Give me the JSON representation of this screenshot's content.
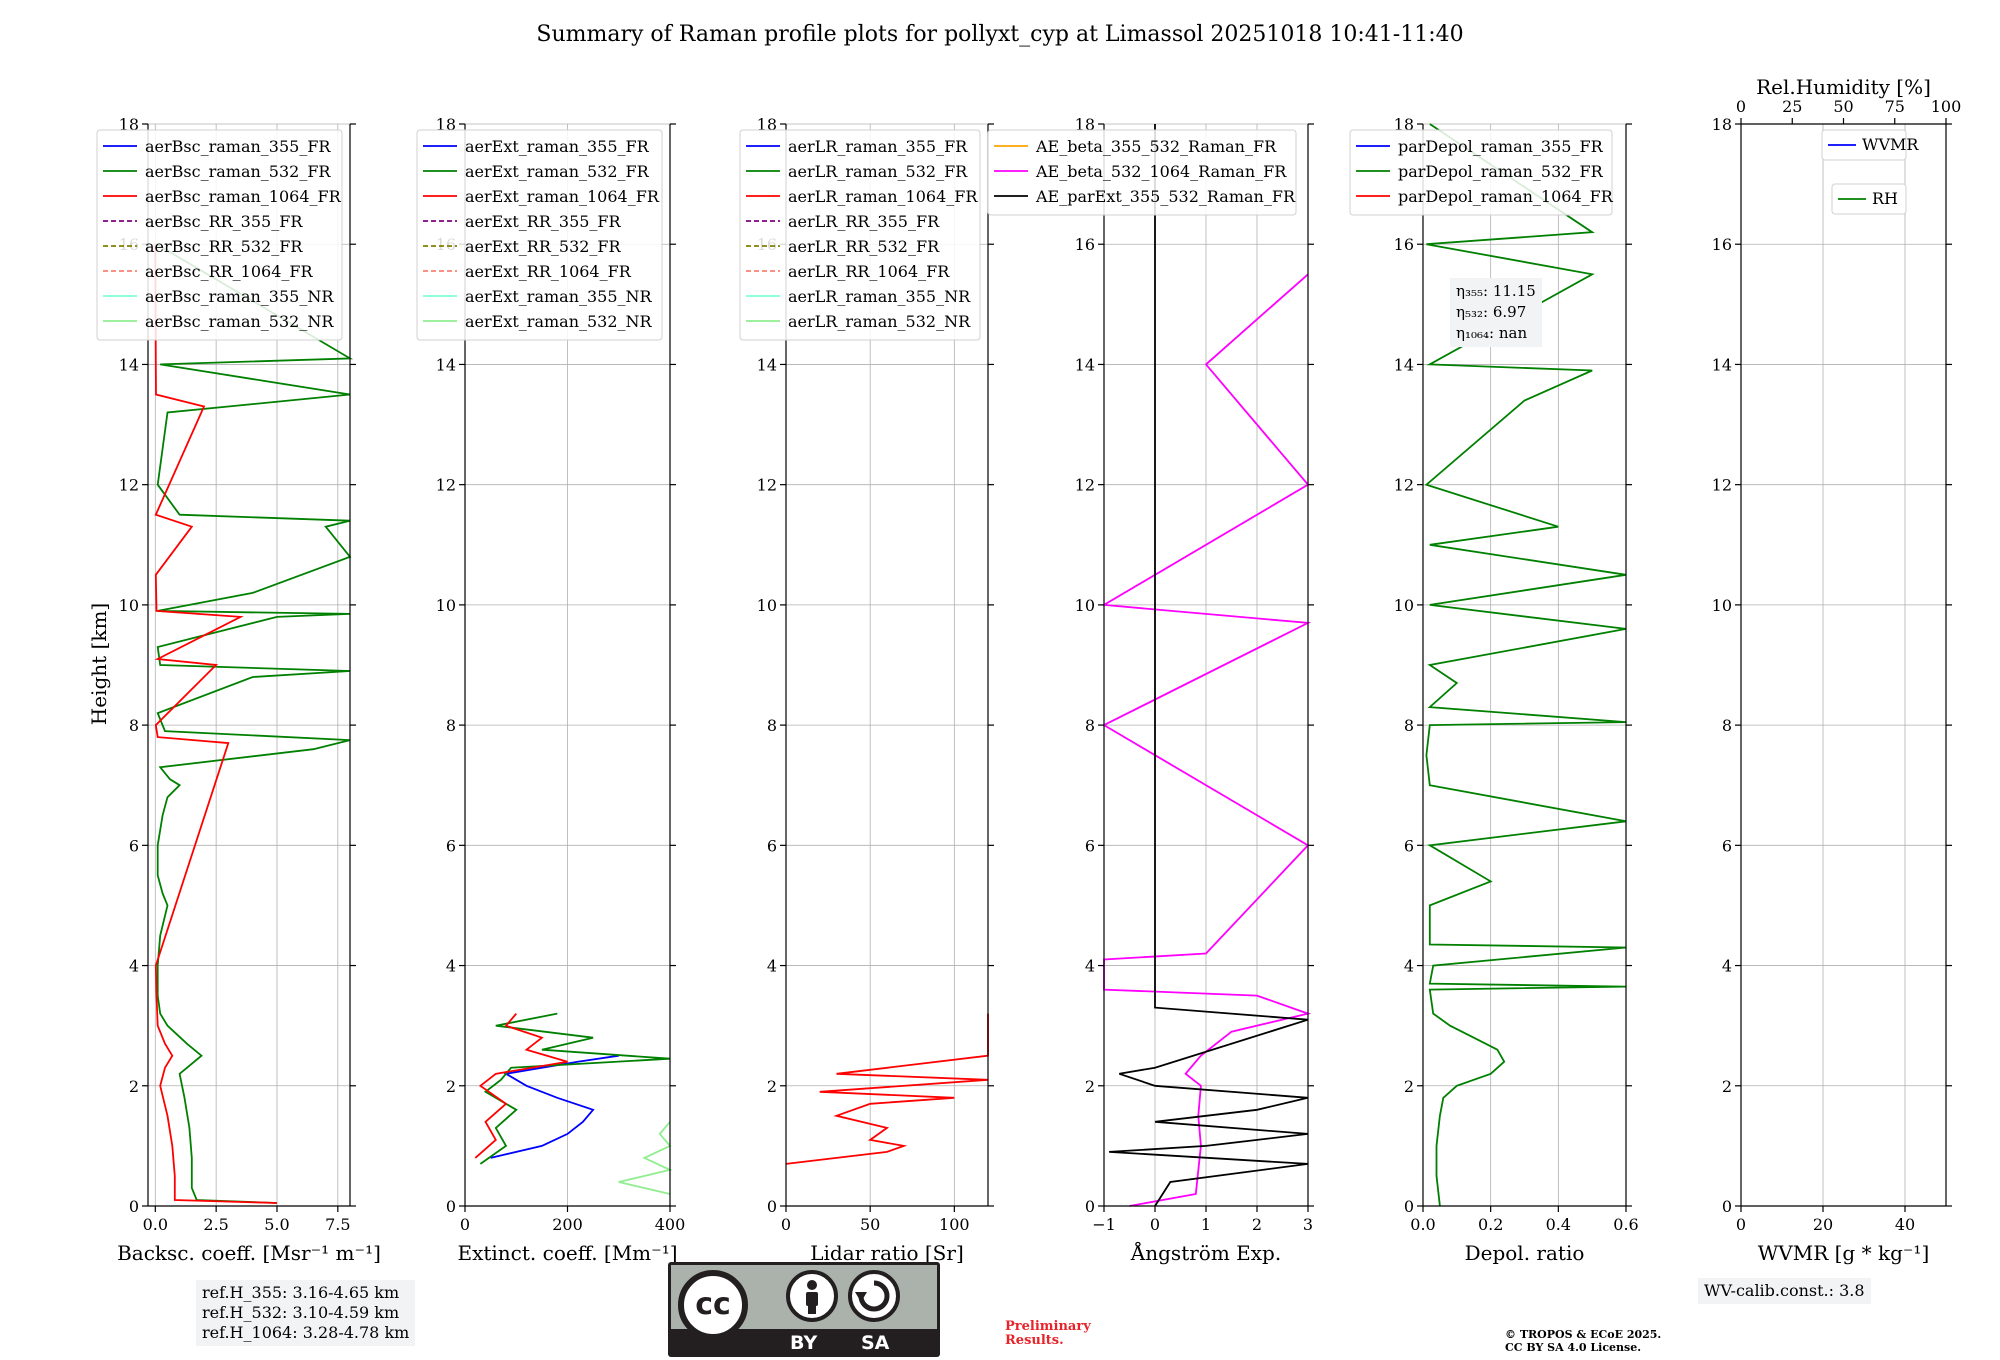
{
  "title": "Summary of Raman profile plots for pollyxt_cyp at Limassol 20251018 10:41-11:40",
  "ylabel": "Height [km]",
  "y_ticks": [
    "0",
    "2",
    "4",
    "6",
    "8",
    "10",
    "12",
    "14",
    "16",
    "18"
  ],
  "colors": {
    "c355": "#0000ff",
    "c532": "#008000",
    "c1064": "#ff0000",
    "rr355": "#800080",
    "rr532": "#808000",
    "rr1064": "#fa8072",
    "nr355": "#7fffd4",
    "nr532": "#90ee90",
    "ae1": "#ffa500",
    "ae2": "#ff00ff",
    "ae3": "#000000"
  },
  "chart_data": [
    {
      "type": "line",
      "name": "backscatter",
      "xlabel": "Backsc. coeff. [Msr⁻¹ m⁻¹]",
      "xlim": [
        -0.3,
        8
      ],
      "ylim": [
        0,
        18
      ],
      "x_ticks": [
        "0.0",
        "2.5",
        "5.0",
        "7.5"
      ],
      "legend": [
        "aerBsc_raman_355_FR",
        "aerBsc_raman_532_FR",
        "aerBsc_raman_1064_FR",
        "aerBsc_RR_355_FR",
        "aerBsc_RR_532_FR",
        "aerBsc_RR_1064_FR",
        "aerBsc_raman_355_NR",
        "aerBsc_raman_532_NR"
      ],
      "series": [
        {
          "name": "aerBsc_raman_532_FR",
          "y": [
            0.05,
            0.1,
            0.3,
            0.8,
            1.3,
            1.8,
            2.2,
            2.5,
            2.7,
            2.85,
            3.0,
            3.2,
            3.5,
            4.0,
            4.5,
            5.0,
            5.2,
            5.5,
            6.0,
            6.5,
            6.8,
            7.0,
            7.1,
            7.3,
            7.6,
            7.75,
            7.9,
            8.2,
            8.8,
            8.9,
            9.0,
            9.3,
            9.8,
            9.85,
            9.9,
            10.2,
            10.8,
            11.3,
            11.4,
            11.5,
            12.0,
            13.2,
            13.5,
            14.0,
            14.1,
            16.0
          ],
          "x": [
            5.0,
            1.7,
            1.5,
            1.5,
            1.4,
            1.2,
            1.0,
            1.9,
            1.3,
            0.9,
            0.5,
            0.2,
            0.1,
            0.1,
            0.2,
            0.5,
            0.3,
            0.1,
            0.1,
            0.3,
            0.5,
            1.0,
            0.6,
            0.2,
            6.5,
            8.0,
            0.4,
            0.1,
            4.0,
            8.0,
            0.2,
            0.1,
            5.0,
            8.0,
            0.1,
            4.0,
            8.0,
            7.0,
            8.0,
            1.0,
            0.1,
            0.5,
            8.0,
            0.2,
            8.0,
            0.05
          ]
        },
        {
          "name": "aerBsc_raman_1064_FR",
          "y": [
            0.05,
            0.1,
            0.5,
            1.0,
            1.5,
            2.0,
            2.3,
            2.5,
            2.7,
            3.0,
            3.5,
            4.0,
            7.7,
            7.8,
            8.0,
            9.0,
            9.1,
            9.8,
            9.9,
            10.5,
            11.3,
            11.5,
            13.3,
            13.5,
            14.0,
            16.0
          ],
          "x": [
            5.0,
            0.8,
            0.8,
            0.7,
            0.5,
            0.2,
            0.4,
            0.7,
            0.4,
            0.1,
            0.05,
            0.02,
            3.0,
            0.1,
            0.02,
            2.5,
            0.1,
            3.5,
            0.05,
            0.02,
            1.5,
            0.02,
            2.0,
            0.03,
            0.02,
            0.0
          ]
        }
      ]
    },
    {
      "type": "line",
      "name": "extinction",
      "xlabel": "Extinct. coeff. [Mm⁻¹]",
      "xlim": [
        0,
        400
      ],
      "ylim": [
        0,
        18
      ],
      "x_ticks": [
        "0",
        "200",
        "400"
      ],
      "legend": [
        "aerExt_raman_355_FR",
        "aerExt_raman_532_FR",
        "aerExt_raman_1064_FR",
        "aerExt_RR_355_FR",
        "aerExt_RR_532_FR",
        "aerExt_RR_1064_FR",
        "aerExt_raman_355_NR",
        "aerExt_raman_532_NR"
      ],
      "series": [
        {
          "name": "aerExt_raman_355_FR",
          "y": [
            0.8,
            1.0,
            1.2,
            1.4,
            1.6,
            1.8,
            2.0,
            2.2,
            2.4,
            2.5
          ],
          "x": [
            50,
            150,
            200,
            230,
            250,
            180,
            120,
            80,
            220,
            300
          ]
        },
        {
          "name": "aerExt_raman_532_FR",
          "y": [
            0.7,
            1.0,
            1.3,
            1.6,
            1.9,
            2.1,
            2.3,
            2.45,
            2.6,
            2.8,
            3.0,
            3.2
          ],
          "x": [
            30,
            80,
            60,
            100,
            40,
            70,
            90,
            400,
            150,
            250,
            60,
            180
          ]
        },
        {
          "name": "aerExt_raman_1064_FR",
          "y": [
            0.8,
            1.1,
            1.4,
            1.7,
            2.0,
            2.2,
            2.4,
            2.6,
            2.8,
            3.0,
            3.2
          ],
          "x": [
            20,
            60,
            40,
            80,
            30,
            60,
            200,
            120,
            150,
            80,
            100
          ]
        },
        {
          "name": "aerExt_raman_532_NR",
          "y": [
            0.2,
            0.4,
            0.6,
            0.8,
            1.0,
            1.2,
            1.4
          ],
          "x": [
            400,
            300,
            400,
            350,
            400,
            380,
            400
          ]
        }
      ]
    },
    {
      "type": "line",
      "name": "lidar_ratio",
      "xlabel": "Lidar ratio [Sr]",
      "xlim": [
        0,
        120
      ],
      "ylim": [
        0,
        18
      ],
      "x_ticks": [
        "0",
        "50",
        "100"
      ],
      "legend": [
        "aerLR_raman_355_FR",
        "aerLR_raman_532_FR",
        "aerLR_raman_1064_FR",
        "aerLR_RR_355_FR",
        "aerLR_RR_532_FR",
        "aerLR_RR_1064_FR",
        "aerLR_raman_355_NR",
        "aerLR_raman_532_NR"
      ],
      "series": [
        {
          "name": "aerLR_raman_1064_FR",
          "y": [
            0.7,
            0.9,
            1.0,
            1.1,
            1.3,
            1.5,
            1.7,
            1.8,
            1.9,
            2.1,
            2.2,
            2.5,
            2.8,
            3.0,
            3.2
          ],
          "x": [
            0,
            60,
            70,
            50,
            60,
            30,
            50,
            100,
            20,
            120,
            30,
            120,
            120,
            120,
            120
          ]
        }
      ]
    },
    {
      "type": "line",
      "name": "angstrom",
      "xlabel": "Ångström Exp.",
      "xlim": [
        -1,
        3
      ],
      "ylim": [
        0,
        18
      ],
      "x_ticks": [
        "−1",
        "0",
        "1",
        "2",
        "3"
      ],
      "legend": [
        "AE_beta_355_532_Raman_FR",
        "AE_beta_532_1064_Raman_FR",
        "AE_parExt_355_532_Raman_FR"
      ],
      "series": [
        {
          "name": "AE_beta_532_1064_Raman_FR",
          "y": [
            0.0,
            0.2,
            1.0,
            1.5,
            2.0,
            2.2,
            2.5,
            2.9,
            3.2,
            3.5,
            3.6,
            4.1,
            4.2,
            6.0,
            8.0,
            9.7,
            10.0,
            12.0,
            14.0,
            15.5
          ],
          "x": [
            -0.5,
            0.8,
            0.9,
            0.85,
            0.9,
            0.6,
            0.9,
            1.5,
            3.0,
            2.0,
            -1.0,
            -1.0,
            1.0,
            3.0,
            -1.0,
            3.0,
            -1.0,
            3.0,
            1.0,
            3.0
          ]
        },
        {
          "name": "AE_parExt_355_532_Raman_FR",
          "y": [
            0.0,
            0.4,
            0.7,
            0.9,
            1.0,
            1.2,
            1.4,
            1.6,
            1.8,
            2.0,
            2.2,
            2.3,
            3.1,
            3.3,
            18.0
          ],
          "x": [
            0.0,
            0.3,
            3.0,
            -0.9,
            1.0,
            3.0,
            0.0,
            2.0,
            3.0,
            0.0,
            -0.7,
            0.0,
            3.0,
            0.0,
            0.0
          ]
        }
      ]
    },
    {
      "type": "line",
      "name": "depol",
      "xlabel": "Depol. ratio",
      "xlim": [
        0,
        0.6
      ],
      "ylim": [
        0,
        18
      ],
      "x_ticks": [
        "0.0",
        "0.2",
        "0.4",
        "0.6"
      ],
      "legend": [
        "parDepol_raman_355_FR",
        "parDepol_raman_532_FR",
        "parDepol_raman_1064_FR"
      ],
      "series": [
        {
          "name": "parDepol_raman_532_FR",
          "y": [
            0.0,
            0.5,
            1.0,
            1.5,
            1.8,
            2.0,
            2.2,
            2.4,
            2.6,
            2.8,
            3.0,
            3.2,
            3.6,
            3.65,
            3.7,
            4.0,
            4.3,
            4.35,
            5.0,
            5.4,
            6.0,
            6.4,
            7.0,
            7.5,
            8.0,
            8.05,
            8.3,
            8.7,
            9.0,
            9.6,
            10.0,
            10.5,
            11.0,
            11.3,
            12.0,
            13.4,
            13.9,
            14.0,
            15.5,
            16.0,
            16.2,
            18.0
          ],
          "x": [
            0.05,
            0.04,
            0.04,
            0.05,
            0.06,
            0.1,
            0.2,
            0.24,
            0.22,
            0.15,
            0.08,
            0.03,
            0.02,
            0.6,
            0.02,
            0.03,
            0.6,
            0.02,
            0.02,
            0.2,
            0.02,
            0.6,
            0.02,
            0.01,
            0.02,
            0.6,
            0.02,
            0.1,
            0.02,
            0.6,
            0.02,
            0.6,
            0.02,
            0.4,
            0.01,
            0.3,
            0.5,
            0.02,
            0.5,
            0.01,
            0.5,
            0.02
          ]
        }
      ]
    },
    {
      "type": "line",
      "name": "wvmr",
      "xlabel": "WVMR [g * kg⁻¹]",
      "xlim": [
        0,
        50
      ],
      "ylim": [
        0,
        18
      ],
      "x_ticks": [
        "0",
        "20",
        "40"
      ],
      "top_xlabel": "Rel.Humidity [%]",
      "top_xlim": [
        0,
        100
      ],
      "top_ticks": [
        "0",
        "25",
        "50",
        "75",
        "100"
      ],
      "legend": [
        "WVMR",
        "RH"
      ],
      "series": []
    }
  ],
  "annotations": {
    "eta_355_label": "η₃₅₅: 11.15",
    "eta_532_label": "η₅₃₂: 6.97",
    "eta_1064_label": "η₁₀₆₄: nan",
    "ref_355": "ref.H_355: 3.16-4.65 km",
    "ref_532": "ref.H_532: 3.10-4.59 km",
    "ref_1064": "ref.H_1064: 3.28-4.78 km",
    "wv_calib": "WV-calib.const.: 3.8",
    "prelim_1": "Preliminary",
    "prelim_2": "Results.",
    "copyright_1": "© TROPOS & ECoE 2025.",
    "copyright_2": "CC BY SA 4.0 License.",
    "cc_text": "cc",
    "cc_by": "BY",
    "cc_sa": "SA"
  }
}
